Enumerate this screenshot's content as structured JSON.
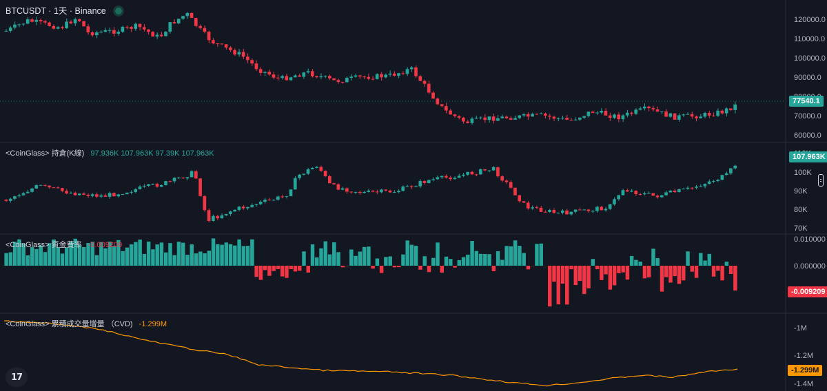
{
  "header": {
    "symbol": "BTCUSDT",
    "interval": "1天",
    "exchange": "Binance",
    "separator": "·"
  },
  "colors": {
    "up": "#26a69a",
    "down": "#f23645",
    "cvd": "#ff9800",
    "bg": "#131722",
    "axis_text": "#b2b5be"
  },
  "panes": {
    "price": {
      "axis_ticks": [
        "120000.0",
        "110000.0",
        "100000.0",
        "90000.0",
        "80000.0",
        "70000.0",
        "60000.0"
      ],
      "last_price": "77540.1"
    },
    "open_interest": {
      "label": "<CoinGlass> 持倉(K線)",
      "values": [
        "97.936K",
        "107.963K",
        "97.39K",
        "107.963K"
      ],
      "axis_ticks": [
        "110K",
        "100K",
        "90K",
        "80K",
        "70K"
      ],
      "last_value": "107.963K"
    },
    "funding_rate": {
      "label": "<CoinGlass> 資金費率",
      "value": "-0.009209",
      "axis_ticks": [
        "0.010000",
        "0.000000"
      ],
      "last_value": "-0.009209"
    },
    "cvd": {
      "label": "<CoinGlass> 累積成交量增量 （CVD)",
      "value": "-1.299M",
      "axis_ticks": [
        "-1M",
        "-1.2M",
        "-1.4M"
      ],
      "last_value": "-1.299M"
    }
  },
  "logo_text": "17"
}
